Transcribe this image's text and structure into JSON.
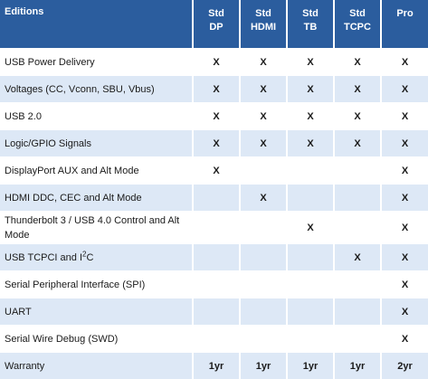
{
  "header": {
    "feature_label": "Editions",
    "editions": [
      {
        "line1": "Std",
        "line2": "DP"
      },
      {
        "line1": "Std",
        "line2": "HDMI"
      },
      {
        "line1": "Std",
        "line2": "TB"
      },
      {
        "line1": "Std",
        "line2": "TCPC"
      },
      {
        "line1": "Pro",
        "line2": ""
      }
    ]
  },
  "rows": [
    {
      "feature": "USB Power Delivery",
      "cells": [
        "X",
        "X",
        "X",
        "X",
        "X"
      ]
    },
    {
      "feature": "Voltages (CC, Vconn, SBU, Vbus)",
      "cells": [
        "X",
        "X",
        "X",
        "X",
        "X"
      ]
    },
    {
      "feature": "USB 2.0",
      "cells": [
        "X",
        "X",
        "X",
        "X",
        "X"
      ]
    },
    {
      "feature": "Logic/GPIO Signals",
      "cells": [
        "X",
        "X",
        "X",
        "X",
        "X"
      ]
    },
    {
      "feature": "DisplayPort AUX and Alt Mode",
      "cells": [
        "X",
        "",
        "",
        "",
        "X"
      ]
    },
    {
      "feature": "HDMI DDC, CEC and Alt Mode",
      "cells": [
        "",
        "X",
        "",
        "",
        "X"
      ]
    },
    {
      "feature": "Thunderbolt 3 / USB 4.0 Control and Alt Mode",
      "cells": [
        "",
        "",
        "X",
        "",
        "X"
      ]
    },
    {
      "feature_prefix": "USB TCPCI and I",
      "feature_sup": "2",
      "feature_suffix": "C",
      "cells": [
        "",
        "",
        "",
        "X",
        "X"
      ]
    },
    {
      "feature": "Serial Peripheral Interface (SPI)",
      "cells": [
        "",
        "",
        "",
        "",
        "X"
      ]
    },
    {
      "feature": "UART",
      "cells": [
        "",
        "",
        "",
        "",
        "X"
      ]
    },
    {
      "feature": "Serial Wire Debug (SWD)",
      "cells": [
        "",
        "",
        "",
        "",
        "X"
      ]
    },
    {
      "feature": "Warranty",
      "cells": [
        "1yr",
        "1yr",
        "1yr",
        "1yr",
        "2yr"
      ]
    }
  ],
  "colors": {
    "header_bg": "#2b5d9e",
    "alt_row_bg": "#dde8f6"
  }
}
